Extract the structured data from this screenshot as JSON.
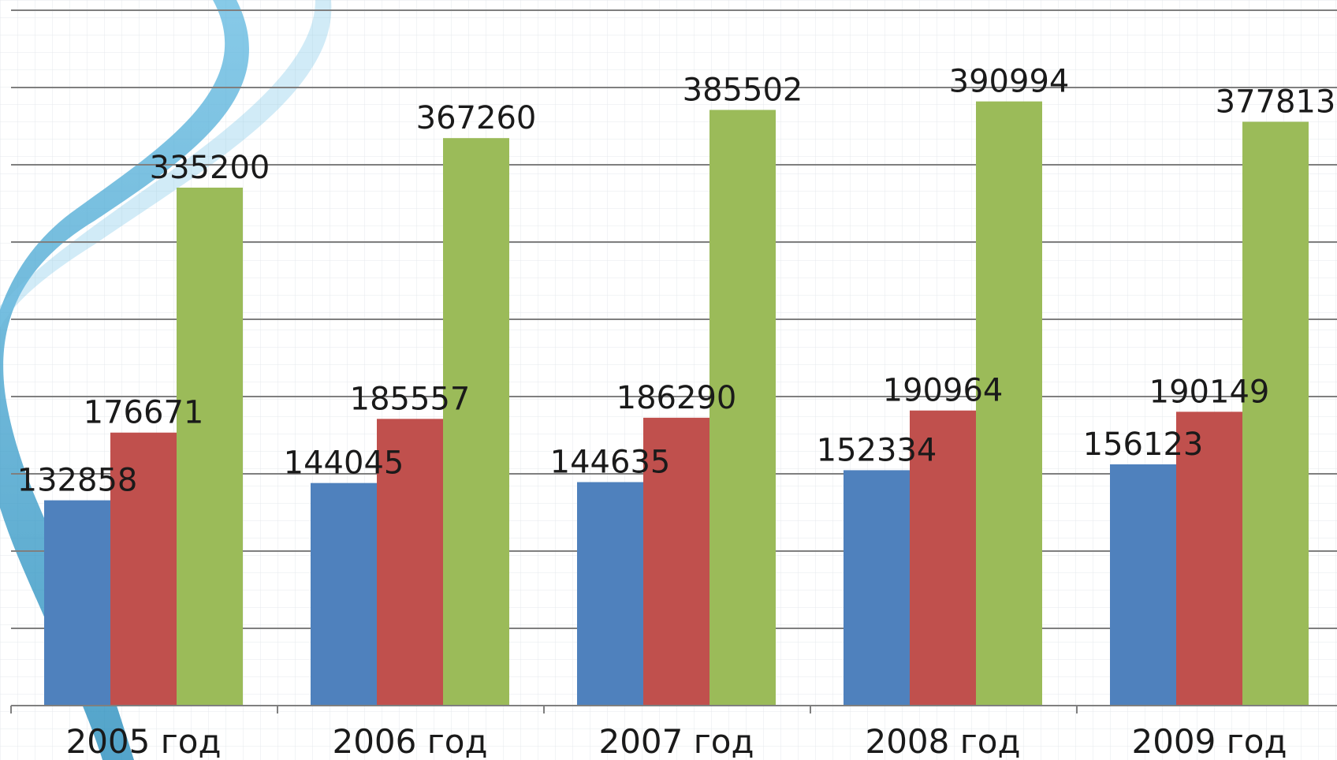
{
  "chart_data": {
    "type": "bar",
    "categories": [
      "2005 год",
      "2006 год",
      "2007 год",
      "2008 год",
      "2009 год"
    ],
    "series": [
      {
        "values": [
          132858,
          144045,
          144635,
          152334,
          156123
        ],
        "color": "#4f81bd"
      },
      {
        "values": [
          176671,
          185557,
          186290,
          190964,
          190149
        ],
        "color": "#c0504d"
      },
      {
        "values": [
          335200,
          367260,
          385502,
          390994,
          377813
        ],
        "color": "#9bbb59"
      }
    ],
    "ylim": [
      0,
      450000
    ],
    "gridline_step": 50000,
    "grid": true,
    "legend": "none"
  }
}
